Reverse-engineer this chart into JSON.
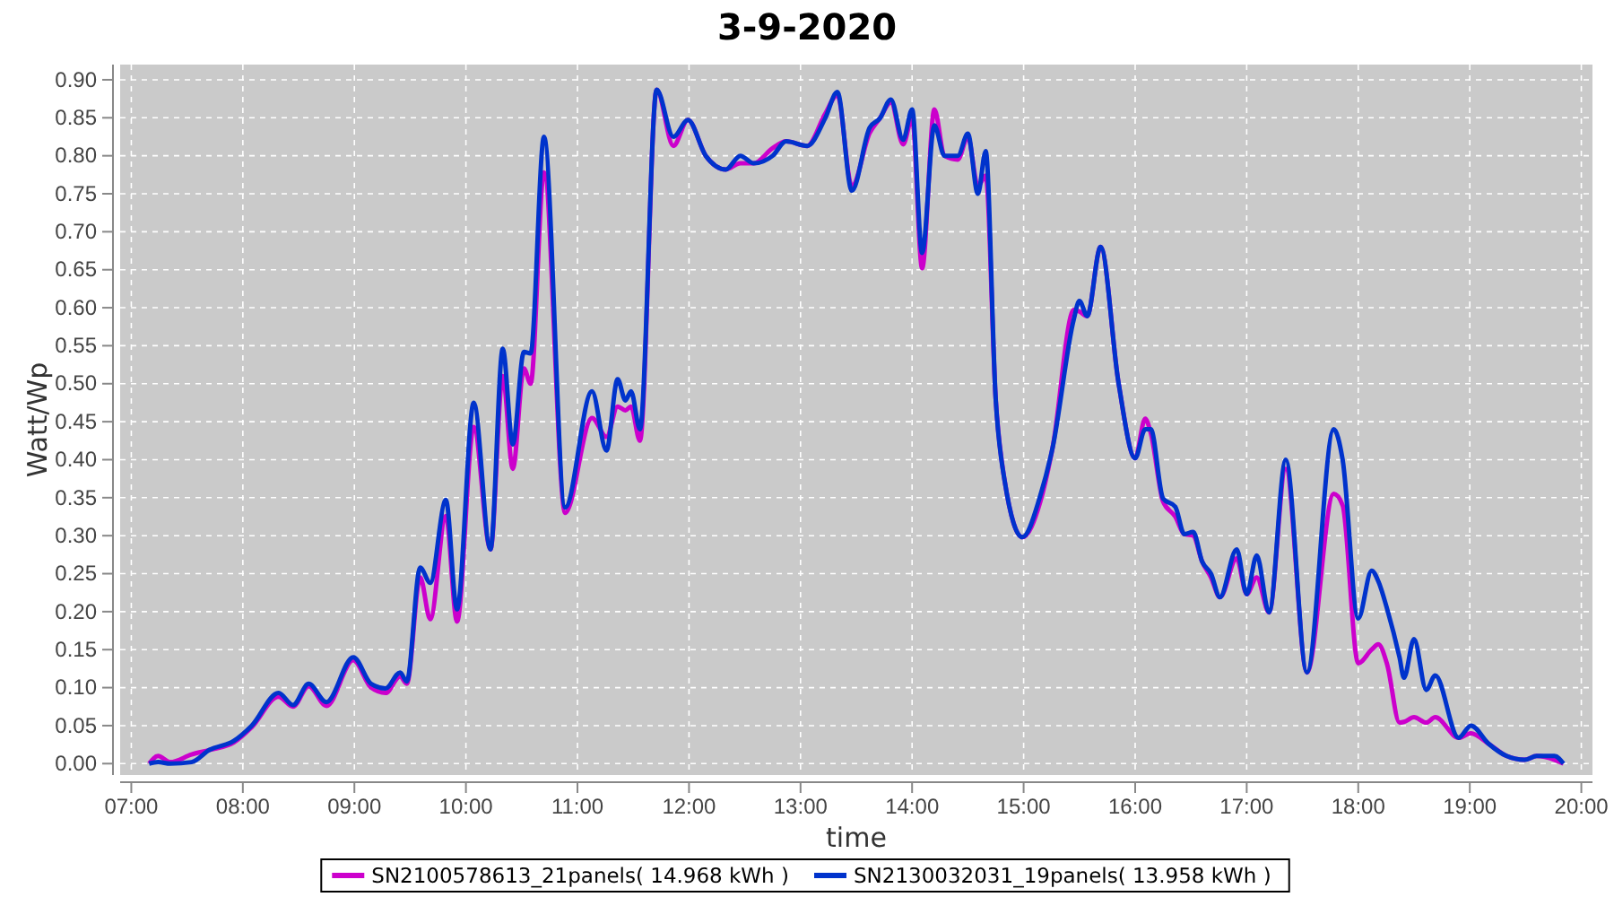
{
  "chart_data": {
    "type": "line",
    "title": "3-9-2020",
    "xlabel": "time",
    "ylabel": "Watt/Wp",
    "x": [
      7.16,
      7.24,
      7.35,
      7.54,
      7.7,
      7.92,
      8.08,
      8.32,
      8.45,
      8.59,
      8.75,
      8.99,
      9.15,
      9.28,
      9.41,
      9.47,
      9.59,
      9.68,
      9.82,
      9.92,
      10.07,
      10.22,
      10.33,
      10.42,
      10.52,
      10.58,
      10.7,
      10.89,
      11.13,
      11.26,
      11.36,
      11.43,
      11.48,
      11.56,
      11.71,
      11.86,
      11.99,
      12.15,
      12.33,
      12.46,
      12.58,
      12.75,
      12.87,
      13.06,
      13.22,
      13.33,
      13.46,
      13.62,
      13.71,
      13.81,
      13.92,
      14.0,
      14.09,
      14.2,
      14.29,
      14.41,
      14.5,
      14.59,
      14.66,
      14.75,
      14.83,
      14.99,
      15.15,
      15.26,
      15.45,
      15.5,
      15.57,
      15.69,
      15.85,
      16.0,
      16.09,
      16.14,
      16.25,
      16.36,
      16.44,
      16.52,
      16.6,
      16.68,
      16.76,
      16.91,
      17.0,
      17.09,
      17.2,
      17.35,
      17.54,
      17.78,
      17.86,
      18.0,
      18.12,
      18.18,
      18.26,
      18.37,
      18.41,
      18.5,
      18.61,
      18.69,
      18.9,
      19.01,
      19.17,
      19.33,
      19.49,
      19.6,
      19.76,
      19.84
    ],
    "series": [
      {
        "name": "SN2100578613_21panels( 14.968 kWh )",
        "color": "#cc00cc",
        "values": [
          0.0,
          0.01,
          0.002,
          0.012,
          0.018,
          0.028,
          0.048,
          0.088,
          0.075,
          0.102,
          0.076,
          0.136,
          0.1,
          0.093,
          0.115,
          0.105,
          0.245,
          0.19,
          0.326,
          0.187,
          0.443,
          0.282,
          0.51,
          0.388,
          0.52,
          0.5,
          0.778,
          0.33,
          0.455,
          0.43,
          0.47,
          0.465,
          0.47,
          0.425,
          0.887,
          0.813,
          0.847,
          0.8,
          0.782,
          0.79,
          0.79,
          0.81,
          0.819,
          0.813,
          0.855,
          0.88,
          0.76,
          0.83,
          0.849,
          0.87,
          0.815,
          0.85,
          0.652,
          0.861,
          0.8,
          0.795,
          0.825,
          0.76,
          0.774,
          0.479,
          0.372,
          0.298,
          0.345,
          0.416,
          0.597,
          0.595,
          0.589,
          0.68,
          0.502,
          0.402,
          0.454,
          0.435,
          0.345,
          0.325,
          0.302,
          0.3,
          0.266,
          0.245,
          0.219,
          0.27,
          0.223,
          0.245,
          0.199,
          0.388,
          0.12,
          0.355,
          0.34,
          0.132,
          0.15,
          0.157,
          0.13,
          0.054,
          0.055,
          0.061,
          0.054,
          0.061,
          0.034,
          0.04,
          0.026,
          0.01,
          0.005,
          0.01,
          0.005,
          0.0
        ]
      },
      {
        "name": "SN2130032031_19panels( 13.958 kWh )",
        "color": "#0033cc",
        "values": [
          0.0,
          0.002,
          0.0,
          0.002,
          0.018,
          0.03,
          0.05,
          0.093,
          0.077,
          0.105,
          0.081,
          0.14,
          0.105,
          0.099,
          0.12,
          0.108,
          0.258,
          0.238,
          0.347,
          0.203,
          0.475,
          0.282,
          0.546,
          0.42,
          0.542,
          0.54,
          0.825,
          0.337,
          0.49,
          0.412,
          0.506,
          0.478,
          0.49,
          0.44,
          0.887,
          0.825,
          0.847,
          0.8,
          0.782,
          0.8,
          0.79,
          0.8,
          0.819,
          0.813,
          0.849,
          0.884,
          0.754,
          0.837,
          0.849,
          0.874,
          0.821,
          0.861,
          0.672,
          0.84,
          0.8,
          0.8,
          0.829,
          0.75,
          0.806,
          0.479,
          0.372,
          0.298,
          0.353,
          0.416,
          0.585,
          0.609,
          0.589,
          0.68,
          0.502,
          0.402,
          0.44,
          0.44,
          0.349,
          0.338,
          0.302,
          0.305,
          0.266,
          0.25,
          0.219,
          0.282,
          0.223,
          0.274,
          0.199,
          0.4,
          0.12,
          0.44,
          0.4,
          0.191,
          0.254,
          0.24,
          0.203,
          0.14,
          0.113,
          0.164,
          0.097,
          0.116,
          0.034,
          0.05,
          0.026,
          0.01,
          0.005,
          0.01,
          0.01,
          0.0
        ]
      }
    ],
    "xlim": [
      6.9,
      20.1
    ],
    "xticks": [
      {
        "value": 7,
        "label": "07:00"
      },
      {
        "value": 8,
        "label": "08:00"
      },
      {
        "value": 9,
        "label": "09:00"
      },
      {
        "value": 10,
        "label": "10:00"
      },
      {
        "value": 11,
        "label": "11:00"
      },
      {
        "value": 12,
        "label": "12:00"
      },
      {
        "value": 13,
        "label": "13:00"
      },
      {
        "value": 14,
        "label": "14:00"
      },
      {
        "value": 15,
        "label": "15:00"
      },
      {
        "value": 16,
        "label": "16:00"
      },
      {
        "value": 17,
        "label": "17:00"
      },
      {
        "value": 18,
        "label": "18:00"
      },
      {
        "value": 19,
        "label": "19:00"
      },
      {
        "value": 20,
        "label": "20:00"
      }
    ],
    "ylim": [
      -0.015,
      0.92
    ],
    "yticks": [
      {
        "value": 0,
        "label": "0.00"
      },
      {
        "value": 0.05,
        "label": "0.05"
      },
      {
        "value": 0.1,
        "label": "0.10"
      },
      {
        "value": 0.15,
        "label": "0.15"
      },
      {
        "value": 0.2,
        "label": "0.20"
      },
      {
        "value": 0.25,
        "label": "0.25"
      },
      {
        "value": 0.3,
        "label": "0.30"
      },
      {
        "value": 0.35,
        "label": "0.35"
      },
      {
        "value": 0.4,
        "label": "0.40"
      },
      {
        "value": 0.45,
        "label": "0.45"
      },
      {
        "value": 0.5,
        "label": "0.50"
      },
      {
        "value": 0.55,
        "label": "0.55"
      },
      {
        "value": 0.6,
        "label": "0.60"
      },
      {
        "value": 0.65,
        "label": "0.65"
      },
      {
        "value": 0.7,
        "label": "0.70"
      },
      {
        "value": 0.75,
        "label": "0.75"
      },
      {
        "value": 0.8,
        "label": "0.80"
      },
      {
        "value": 0.85,
        "label": "0.85"
      },
      {
        "value": 0.9,
        "label": "0.90"
      }
    ],
    "grid": true,
    "legend": "bottom",
    "line_style": "solid"
  }
}
